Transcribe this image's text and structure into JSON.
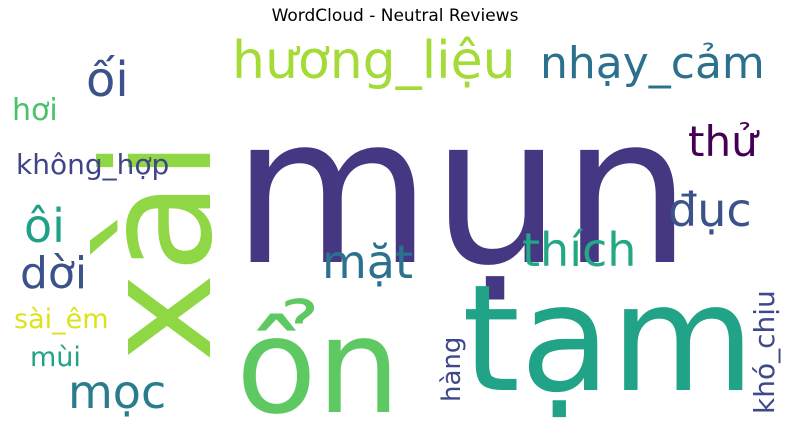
{
  "title": "WordCloud - Neutral Reviews",
  "words": [
    {
      "text": "mụn",
      "color": "#453781"
    },
    {
      "text": "xài",
      "color": "#8fd744"
    },
    {
      "text": "tạm",
      "color": "#20a387"
    },
    {
      "text": "ổn",
      "color": "#5ec962"
    },
    {
      "text": "hương_liệu",
      "color": "#a5db36"
    },
    {
      "text": "nhạy_cảm",
      "color": "#2d708e"
    },
    {
      "text": "ối",
      "color": "#3b528b"
    },
    {
      "text": "hơi",
      "color": "#4ac16d"
    },
    {
      "text": "không_hợp",
      "color": "#414487"
    },
    {
      "text": "thử",
      "color": "#440154"
    },
    {
      "text": "đục",
      "color": "#3b528b"
    },
    {
      "text": "ôi",
      "color": "#1fa187"
    },
    {
      "text": "dời",
      "color": "#3b528b"
    },
    {
      "text": "mặt",
      "color": "#2c728e"
    },
    {
      "text": "thích",
      "color": "#22a884"
    },
    {
      "text": "sài_êm",
      "color": "#dde318"
    },
    {
      "text": "mùi",
      "color": "#20a386"
    },
    {
      "text": "mọc",
      "color": "#287c8e"
    },
    {
      "text": "hàng",
      "color": "#3f4889"
    },
    {
      "text": "khó_chịu",
      "color": "#3e4989"
    }
  ]
}
